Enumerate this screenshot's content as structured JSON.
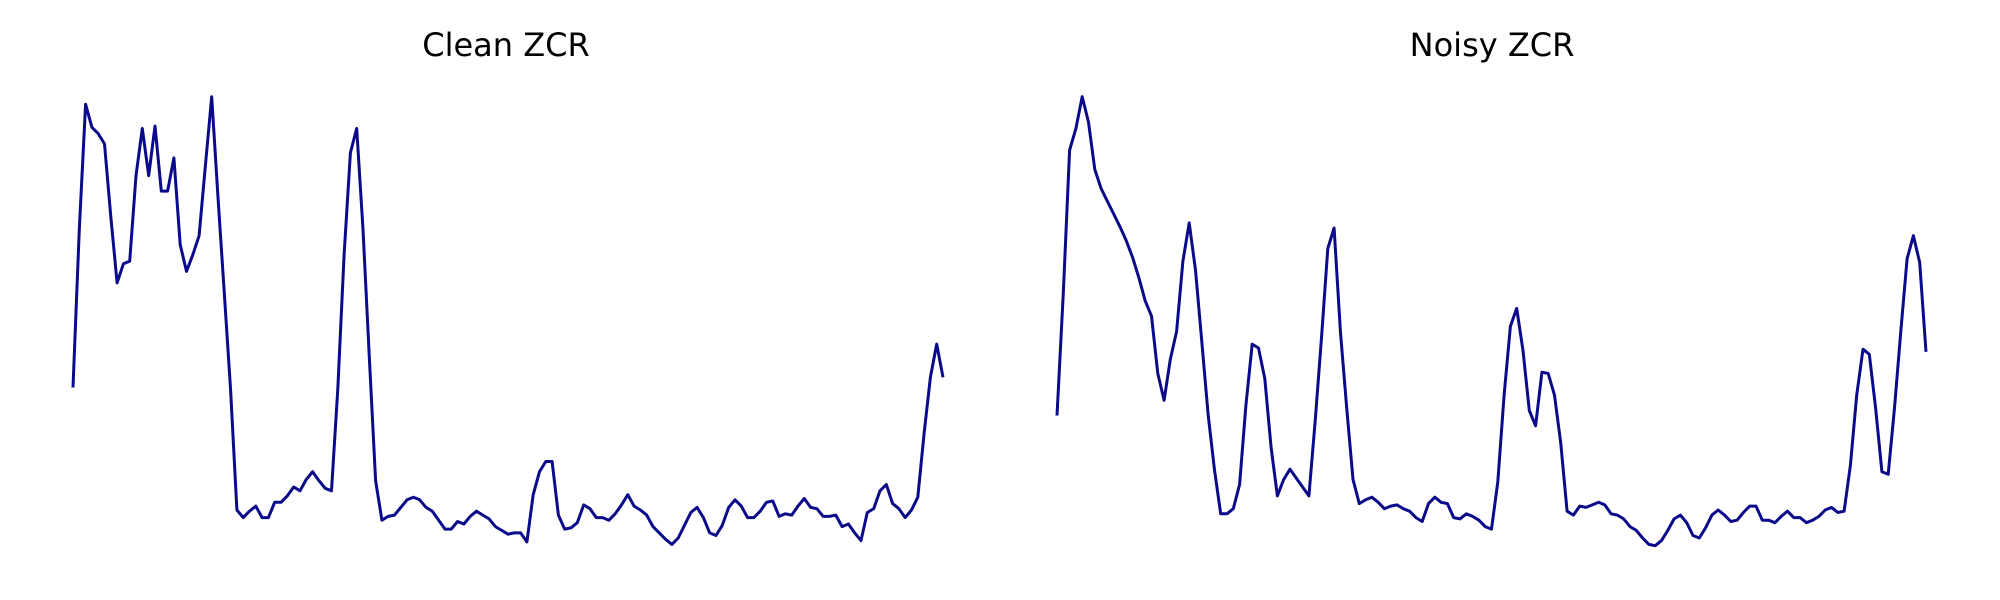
{
  "chart_data": [
    {
      "type": "line",
      "title": "Clean ZCR",
      "color": "#0a0a8a",
      "ylim": [
        0,
        370
      ],
      "values": [
        136,
        260,
        358,
        340,
        335,
        327,
        270,
        218,
        233,
        235,
        302,
        339,
        302,
        341,
        290,
        290,
        316,
        248,
        227,
        240,
        255,
        310,
        364,
        285,
        210,
        134,
        40,
        34,
        39,
        43,
        34,
        34,
        46,
        46,
        51,
        58,
        55,
        64,
        70,
        63,
        57,
        55,
        135,
        240,
        320,
        339,
        260,
        160,
        63,
        32,
        35,
        36,
        42,
        48,
        50,
        48,
        42,
        39,
        32,
        25,
        25,
        31,
        29,
        35,
        39,
        36,
        33,
        27,
        24,
        21,
        22,
        22,
        15,
        52,
        70,
        78,
        78,
        36,
        25,
        26,
        30,
        44,
        41,
        34,
        34,
        32,
        37,
        44,
        52,
        43,
        40,
        36,
        27,
        22,
        17,
        13,
        18,
        28,
        38,
        42,
        34,
        22,
        20,
        28,
        42,
        48,
        43,
        34,
        34,
        39,
        46,
        47,
        35,
        37,
        36,
        43,
        49,
        42,
        41,
        35,
        35,
        36,
        27,
        29,
        22,
        16,
        38,
        41,
        55,
        60,
        45,
        41,
        34,
        40,
        50,
        100,
        144,
        170,
        144
      ]
    },
    {
      "type": "line",
      "title": "Noisy ZCR",
      "color": "#0a0a8a",
      "ylim": [
        0,
        370
      ],
      "values": [
        114,
        210,
        322,
        339,
        364,
        344,
        307,
        292,
        282,
        272,
        262,
        251,
        238,
        222,
        204,
        192,
        147,
        126,
        158,
        180,
        235,
        265,
        228,
        172,
        115,
        72,
        37,
        37,
        41,
        60,
        122,
        170,
        167,
        143,
        89,
        51,
        64,
        72,
        65,
        58,
        51,
        110,
        175,
        245,
        261,
        180,
        120,
        64,
        45,
        48,
        50,
        46,
        41,
        43,
        44,
        41,
        39,
        34,
        31,
        45,
        50,
        46,
        45,
        34,
        33,
        37,
        35,
        32,
        27,
        25,
        62,
        130,
        184,
        198,
        165,
        118,
        106,
        148,
        147,
        130,
        92,
        39,
        36,
        43,
        42,
        44,
        46,
        44,
        37,
        36,
        33,
        27,
        24,
        18,
        13,
        12,
        16,
        24,
        33,
        36,
        30,
        20,
        18,
        26,
        36,
        40,
        36,
        31,
        32,
        38,
        43,
        43,
        32,
        32,
        30,
        35,
        39,
        34,
        34,
        30,
        32,
        35,
        40,
        42,
        38,
        39,
        75,
        130,
        166,
        162,
        120,
        70,
        68,
        120,
        180,
        237,
        255,
        234,
        164
      ]
    }
  ]
}
